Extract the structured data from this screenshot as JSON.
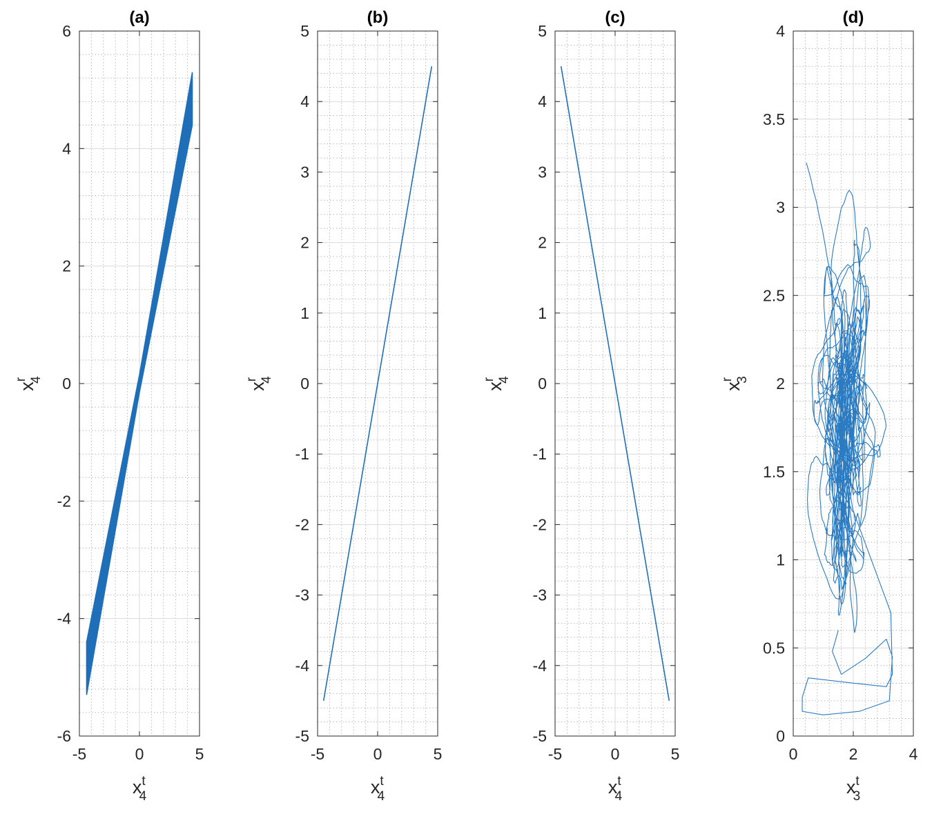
{
  "chart_data": [
    {
      "panel": "a",
      "type": "line",
      "title": "(a)",
      "xlabel": {
        "base": "x",
        "sub": "4",
        "sup": "t"
      },
      "ylabel": {
        "base": "x",
        "sub": "4",
        "sup": "r"
      },
      "xlim": [
        -5,
        5
      ],
      "ylim": [
        -6,
        6
      ],
      "xticks": [
        -5,
        0,
        5
      ],
      "yticks": [
        -6,
        -4,
        -2,
        0,
        2,
        4,
        6
      ],
      "xtick_labels": [
        "-5",
        "0",
        "5"
      ],
      "ytick_labels": [
        "-6",
        "-4",
        "-2",
        "0",
        "2",
        "4",
        "6"
      ],
      "grid": true,
      "minor_grid": true,
      "series": [
        {
          "style": "band",
          "color": "#1f6fb8",
          "upper": [
            [
              -4.4,
              -4.4
            ],
            [
              0,
              0.15
            ],
            [
              4.4,
              5.3
            ]
          ],
          "lower": [
            [
              -4.4,
              -5.3
            ],
            [
              0,
              -0.15
            ],
            [
              4.4,
              4.4
            ]
          ]
        }
      ]
    },
    {
      "panel": "b",
      "type": "line",
      "title": "(b)",
      "xlabel": {
        "base": "x",
        "sub": "4",
        "sup": "t"
      },
      "ylabel": {
        "base": "x",
        "sub": "4",
        "sup": "r"
      },
      "xlim": [
        -5,
        5
      ],
      "ylim": [
        -5,
        5
      ],
      "xticks": [
        -5,
        0,
        5
      ],
      "yticks": [
        -5,
        -4,
        -3,
        -2,
        -1,
        0,
        1,
        2,
        3,
        4,
        5
      ],
      "xtick_labels": [
        "-5",
        "0",
        "5"
      ],
      "ytick_labels": [
        "-5",
        "-4",
        "-3",
        "-2",
        "-1",
        "0",
        "1",
        "2",
        "3",
        "4",
        "5"
      ],
      "grid": true,
      "minor_grid": true,
      "series": [
        {
          "style": "line",
          "color": "#1f6fb8",
          "x": [
            -4.5,
            4.5
          ],
          "y": [
            -4.5,
            4.5
          ]
        }
      ]
    },
    {
      "panel": "c",
      "type": "line",
      "title": "(c)",
      "xlabel": {
        "base": "x",
        "sub": "4",
        "sup": "t"
      },
      "ylabel": {
        "base": "x",
        "sub": "4",
        "sup": "r"
      },
      "xlim": [
        -5,
        5
      ],
      "ylim": [
        -5,
        5
      ],
      "xticks": [
        -5,
        0,
        5
      ],
      "yticks": [
        -5,
        -4,
        -3,
        -2,
        -1,
        0,
        1,
        2,
        3,
        4,
        5
      ],
      "xtick_labels": [
        "-5",
        "0",
        "5"
      ],
      "ytick_labels": [
        "-5",
        "-4",
        "-3",
        "-2",
        "-1",
        "0",
        "1",
        "2",
        "3",
        "4",
        "5"
      ],
      "grid": true,
      "minor_grid": true,
      "series": [
        {
          "style": "line",
          "color": "#1f6fb8",
          "x": [
            -4.5,
            4.5
          ],
          "y": [
            4.5,
            -4.5
          ]
        }
      ]
    },
    {
      "panel": "d",
      "type": "line",
      "title": "(d)",
      "xlabel": {
        "base": "x",
        "sub": "3",
        "sup": "t"
      },
      "ylabel": {
        "base": "x",
        "sub": "3",
        "sup": "r"
      },
      "xlim": [
        0,
        4
      ],
      "ylim": [
        0,
        4
      ],
      "xticks": [
        0,
        2,
        4
      ],
      "yticks": [
        0,
        0.5,
        1,
        1.5,
        2,
        2.5,
        3,
        3.5,
        4
      ],
      "xtick_labels": [
        "0",
        "2",
        "4"
      ],
      "ytick_labels": [
        "0",
        "0.5",
        "1",
        "1.5",
        "2",
        "2.5",
        "3",
        "3.5",
        "4"
      ],
      "grid": true,
      "minor_grid": true,
      "series": [
        {
          "style": "trajectory",
          "color": "#2a7bc2",
          "x_range": [
            0.2,
            3.3
          ],
          "y_range": [
            0.12,
            3.65
          ]
        }
      ]
    }
  ]
}
